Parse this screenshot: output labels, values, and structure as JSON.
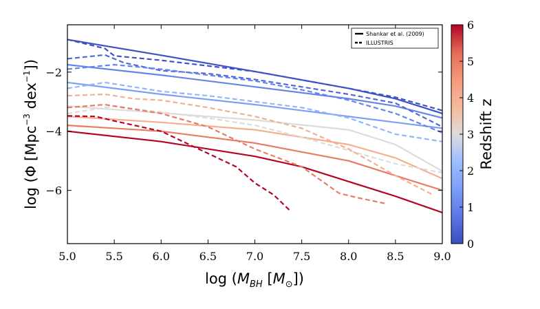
{
  "chart_data": {
    "type": "line",
    "xlabel": "log (M_BH [M_sun])",
    "xlabel_parts": [
      "log (",
      "M",
      "BH",
      " [",
      "M",
      "⊙",
      "])"
    ],
    "ylabel": "log (Φ [Mpc^-3 dex^-1])",
    "ylabel_parts": [
      "log (Φ [Mpc",
      "−3",
      " dex",
      "−1",
      "])"
    ],
    "xlim": [
      5.0,
      9.0
    ],
    "ylim": [
      -7.8,
      -0.4
    ],
    "xticks": [
      5.0,
      5.5,
      6.0,
      6.5,
      7.0,
      7.5,
      8.0,
      8.5,
      9.0
    ],
    "xtick_labels": [
      "5.0",
      "5.5",
      "6.0",
      "6.5",
      "7.0",
      "7.5",
      "8.0",
      "8.5",
      "9.0"
    ],
    "yticks": [
      -6,
      -4,
      -2
    ],
    "ytick_labels": [
      "−6",
      "−4",
      "−2"
    ],
    "grid": false,
    "legend": {
      "position": "top-right",
      "entries": [
        {
          "label": "Shankar et al. (2009)",
          "style": "solid"
        },
        {
          "label": "ILLUSTRIS",
          "style": "dashed"
        }
      ]
    },
    "colorbar": {
      "label": "Redshift z",
      "min": 0,
      "max": 6,
      "ticks": [
        0,
        1,
        2,
        3,
        4,
        5,
        6
      ],
      "tick_labels": [
        "0",
        "1",
        "2",
        "3",
        "4",
        "5",
        "6"
      ],
      "colormap": "coolwarm"
    },
    "series": [
      {
        "name": "Shankar z=0",
        "z": 0.1,
        "style": "solid",
        "x": [
          5.0,
          6.0,
          7.0,
          8.0,
          8.5,
          9.0
        ],
        "y": [
          -0.9,
          -1.43,
          -1.98,
          -2.55,
          -2.9,
          -3.4
        ]
      },
      {
        "name": "Shankar z=1",
        "z": 1.0,
        "style": "solid",
        "x": [
          5.0,
          6.0,
          7.0,
          8.0,
          8.5,
          9.0
        ],
        "y": [
          -1.75,
          -2.1,
          -2.5,
          -2.9,
          -3.15,
          -3.55
        ]
      },
      {
        "name": "Shankar z=1.5",
        "z": 1.5,
        "style": "solid",
        "x": [
          5.0,
          6.0,
          7.0,
          8.0,
          8.5,
          9.0
        ],
        "y": [
          -2.35,
          -2.75,
          -3.1,
          -3.5,
          -3.7,
          -3.9
        ]
      },
      {
        "name": "Shankar z=3",
        "z": 3.0,
        "style": "solid",
        "x": [
          5.0,
          6.0,
          7.0,
          8.0,
          8.5,
          9.0
        ],
        "y": [
          -3.15,
          -3.38,
          -3.62,
          -3.95,
          -4.45,
          -5.35
        ]
      },
      {
        "name": "Shankar z=4",
        "z": 4.0,
        "style": "solid",
        "x": [
          5.0,
          6.0,
          7.0,
          8.0,
          8.5,
          9.0
        ],
        "y": [
          -3.5,
          -3.7,
          -3.95,
          -4.45,
          -4.9,
          -5.6
        ]
      },
      {
        "name": "Shankar z=5",
        "z": 5.0,
        "style": "solid",
        "x": [
          5.0,
          6.0,
          7.0,
          7.5,
          8.0,
          8.5,
          9.0
        ],
        "y": [
          -3.8,
          -4.0,
          -4.4,
          -4.7,
          -5.0,
          -5.5,
          -6.0
        ]
      },
      {
        "name": "Shankar z=6",
        "z": 6.0,
        "style": "solid",
        "x": [
          5.0,
          6.0,
          7.0,
          7.5,
          8.0,
          8.5,
          9.0
        ],
        "y": [
          -4.0,
          -4.35,
          -4.85,
          -5.2,
          -5.7,
          -6.2,
          -6.75
        ]
      },
      {
        "name": "ILLUSTRIS z=0",
        "z": 0.1,
        "style": "dashed",
        "x": [
          5.0,
          5.4,
          5.5,
          6.0,
          7.0,
          8.0,
          8.5,
          9.0
        ],
        "y": [
          -0.9,
          -1.2,
          -1.45,
          -1.6,
          -1.98,
          -2.55,
          -2.85,
          -3.3
        ]
      },
      {
        "name": "ILLUSTRIS z=0.5",
        "z": 0.5,
        "style": "dashed",
        "x": [
          5.0,
          5.4,
          5.6,
          6.0,
          6.5,
          7.0,
          8.0,
          8.5,
          9.0
        ],
        "y": [
          -1.55,
          -1.42,
          -1.68,
          -1.95,
          -2.05,
          -2.25,
          -2.75,
          -3.05,
          -3.85
        ]
      },
      {
        "name": "ILLUSTRIS z=1",
        "z": 1.0,
        "style": "dashed",
        "x": [
          5.0,
          5.5,
          6.0,
          6.5,
          7.0,
          7.5,
          8.0,
          8.5,
          9.0
        ],
        "y": [
          -1.9,
          -1.75,
          -1.9,
          -2.1,
          -2.3,
          -2.6,
          -2.95,
          -3.4,
          -4.05
        ]
      },
      {
        "name": "ILLUSTRIS z=2",
        "z": 2.0,
        "style": "dashed",
        "x": [
          5.0,
          5.4,
          6.0,
          6.5,
          7.0,
          7.5,
          8.0,
          8.5,
          9.0
        ],
        "y": [
          -2.55,
          -2.35,
          -2.65,
          -2.8,
          -3.0,
          -3.2,
          -3.55,
          -4.1,
          -4.35
        ]
      },
      {
        "name": "ILLUSTRIS z=3",
        "z": 3.0,
        "style": "dashed",
        "x": [
          5.0,
          5.5,
          6.0,
          6.5,
          7.0,
          7.5,
          8.0,
          8.5,
          9.0
        ],
        "y": [
          -3.4,
          -3.15,
          -3.35,
          -3.55,
          -3.8,
          -4.2,
          -4.65,
          -5.1,
          -5.4
        ]
      },
      {
        "name": "ILLUSTRIS z=4",
        "z": 4.0,
        "style": "dashed",
        "x": [
          5.0,
          5.4,
          5.7,
          6.0,
          6.5,
          7.0,
          7.5,
          8.0,
          8.5,
          8.9
        ],
        "y": [
          -2.8,
          -2.75,
          -2.9,
          -2.95,
          -3.2,
          -3.5,
          -3.9,
          -4.6,
          -5.5,
          -6.15
        ]
      },
      {
        "name": "ILLUSTRIS z=5",
        "z": 5.0,
        "style": "dashed",
        "x": [
          5.0,
          5.4,
          5.7,
          6.0,
          6.5,
          7.0,
          7.5,
          7.7,
          7.9,
          8.1,
          8.4
        ],
        "y": [
          -3.2,
          -3.1,
          -3.25,
          -3.4,
          -3.85,
          -4.6,
          -5.2,
          -5.65,
          -6.1,
          -6.25,
          -6.45
        ]
      },
      {
        "name": "ILLUSTRIS z=6",
        "z": 6.0,
        "style": "dashed",
        "x": [
          5.0,
          5.3,
          5.5,
          6.0,
          6.4,
          6.8,
          7.0,
          7.2,
          7.38
        ],
        "y": [
          -3.48,
          -3.5,
          -3.65,
          -4.0,
          -4.6,
          -5.2,
          -5.75,
          -6.15,
          -6.7
        ]
      }
    ]
  }
}
